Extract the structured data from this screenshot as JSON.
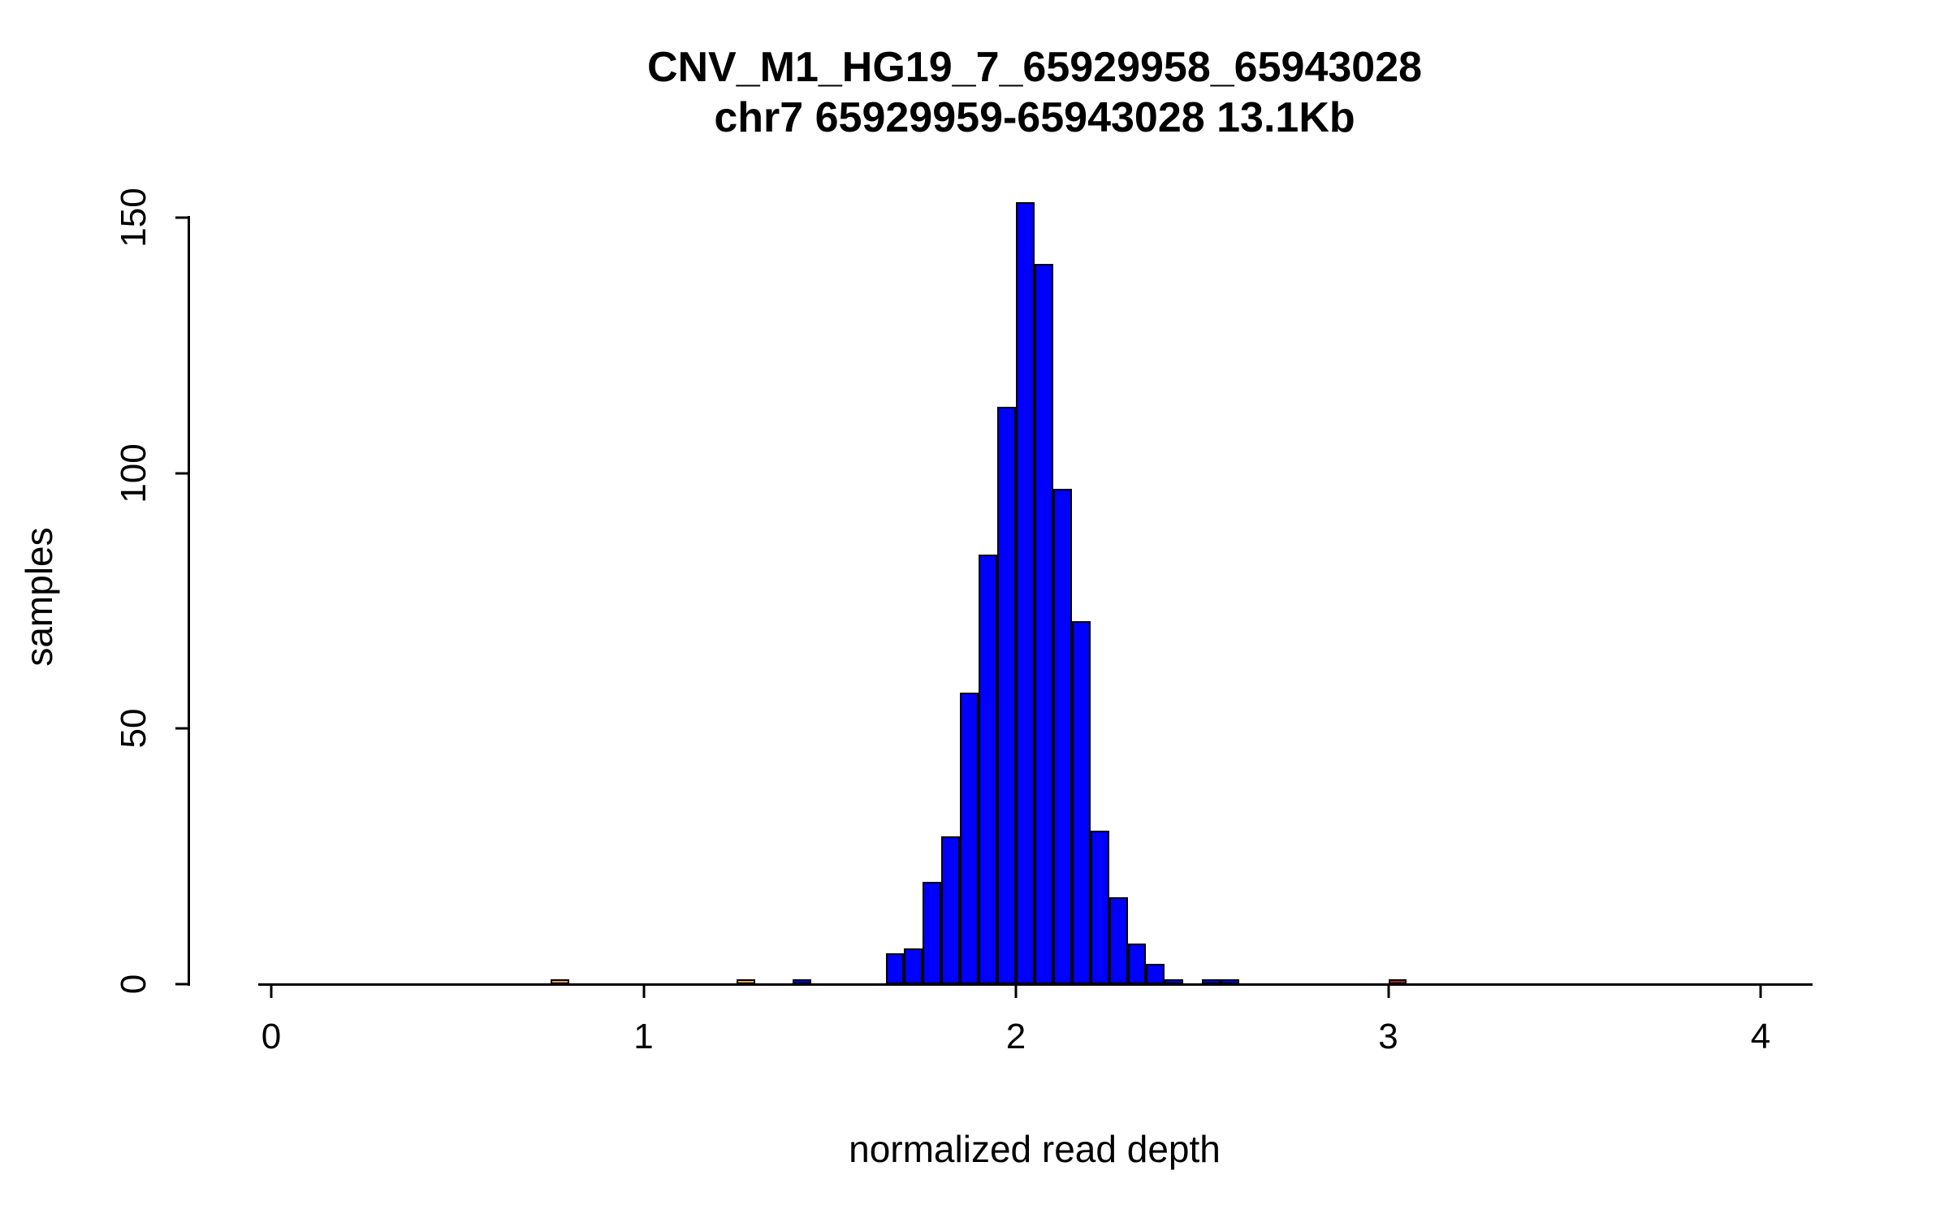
{
  "chart_data": {
    "type": "bar",
    "subtype": "histogram",
    "title": "CNV_M1_HG19_7_65929958_65943028",
    "subtitle": "chr7 65929959-65943028 13.1Kb",
    "xlabel": "normalized read depth",
    "ylabel": "samples",
    "xlim": [
      0,
      4.15
    ],
    "ylim": [
      0,
      155
    ],
    "x_ticks": [
      0,
      1,
      2,
      3,
      4
    ],
    "y_ticks": [
      0,
      50,
      100,
      150
    ],
    "grid": false,
    "legend": null,
    "bin_width": 0.05,
    "colors": {
      "blue": "#0000FF",
      "orange": "#E8A33D",
      "red": "#B22222",
      "stroke": "#000000",
      "background": "#FFFFFF"
    },
    "bins": [
      {
        "x0": 0.75,
        "count": 1,
        "color": "orange"
      },
      {
        "x0": 1.25,
        "count": 1,
        "color": "orange"
      },
      {
        "x0": 1.4,
        "count": 1,
        "color": "blue"
      },
      {
        "x0": 1.65,
        "count": 6,
        "color": "blue"
      },
      {
        "x0": 1.7,
        "count": 7,
        "color": "blue"
      },
      {
        "x0": 1.75,
        "count": 20,
        "color": "blue"
      },
      {
        "x0": 1.8,
        "count": 29,
        "color": "blue"
      },
      {
        "x0": 1.85,
        "count": 57,
        "color": "blue"
      },
      {
        "x0": 1.9,
        "count": 84,
        "color": "blue"
      },
      {
        "x0": 1.95,
        "count": 113,
        "color": "blue"
      },
      {
        "x0": 2.0,
        "count": 153,
        "color": "blue"
      },
      {
        "x0": 2.05,
        "count": 141,
        "color": "blue"
      },
      {
        "x0": 2.1,
        "count": 97,
        "color": "blue"
      },
      {
        "x0": 2.15,
        "count": 71,
        "color": "blue"
      },
      {
        "x0": 2.2,
        "count": 30,
        "color": "blue"
      },
      {
        "x0": 2.25,
        "count": 17,
        "color": "blue"
      },
      {
        "x0": 2.3,
        "count": 8,
        "color": "blue"
      },
      {
        "x0": 2.35,
        "count": 4,
        "color": "blue"
      },
      {
        "x0": 2.4,
        "count": 1,
        "color": "blue"
      },
      {
        "x0": 2.5,
        "count": 1,
        "color": "blue"
      },
      {
        "x0": 2.55,
        "count": 1,
        "color": "blue"
      },
      {
        "x0": 3.0,
        "count": 1,
        "color": "red"
      }
    ]
  }
}
